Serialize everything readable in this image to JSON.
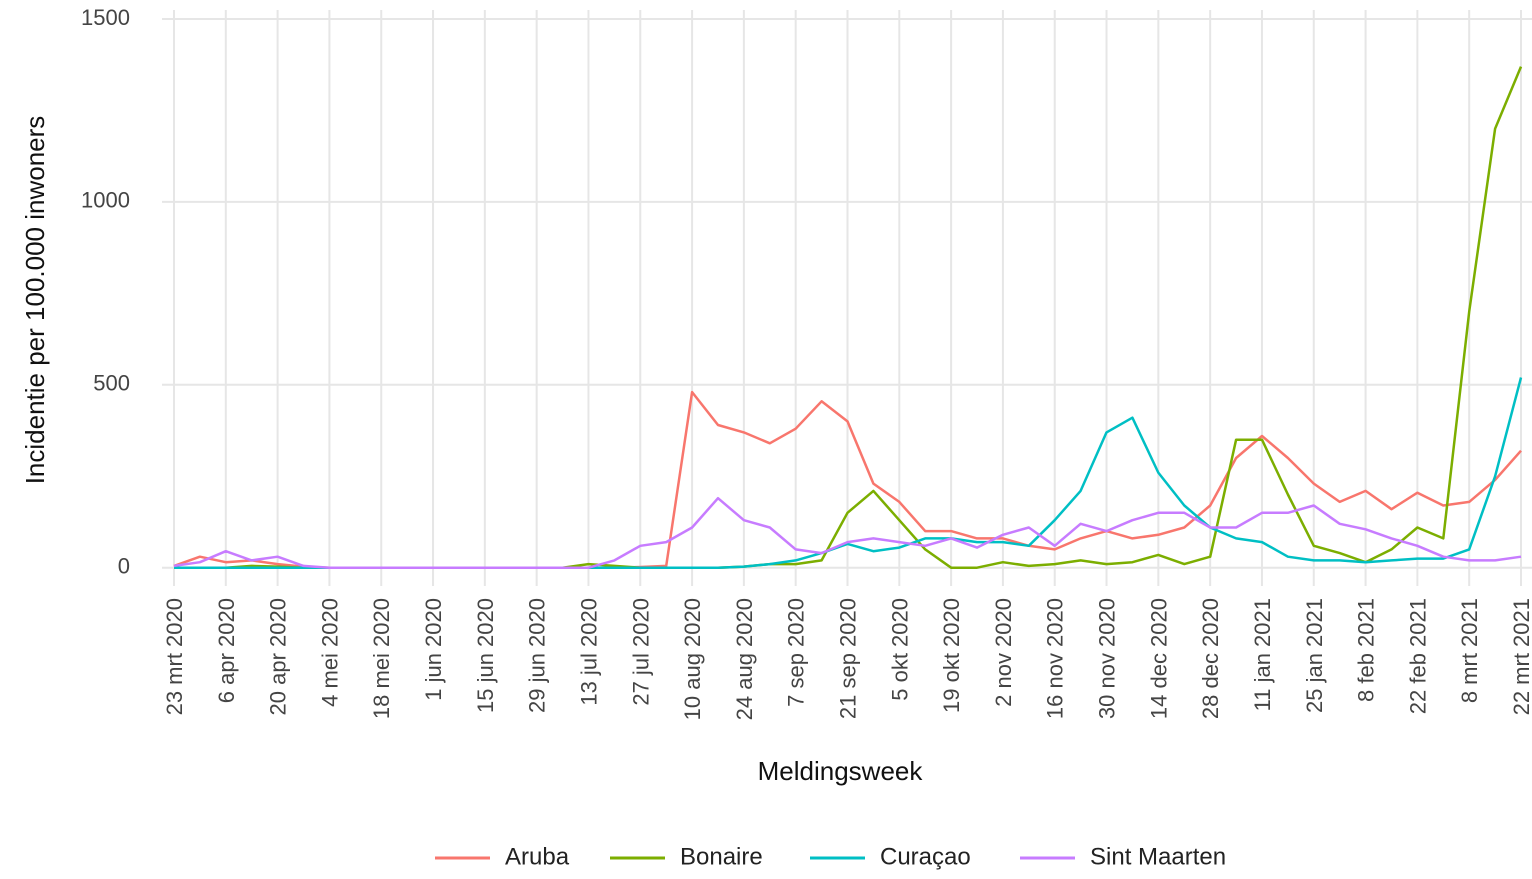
{
  "chart_data": {
    "type": "line",
    "x_label": "Meldingsweek",
    "y_label": "Incidentie per 100.000 inwoners",
    "categories": [
      "23 mrt 2020",
      null,
      "6 apr 2020",
      null,
      "20 apr 2020",
      null,
      "4 mei 2020",
      null,
      "18 mei 2020",
      null,
      "1 jun 2020",
      null,
      "15 jun 2020",
      null,
      "29 jun 2020",
      null,
      "13 jul 2020",
      null,
      "27 jul 2020",
      null,
      "10 aug 2020",
      null,
      "24 aug 2020",
      null,
      "7 sep 2020",
      null,
      "21 sep 2020",
      null,
      "5 okt 2020",
      null,
      "19 okt 2020",
      null,
      "2 nov 2020",
      null,
      "16 nov 2020",
      null,
      "30 nov 2020",
      null,
      "14 dec 2020",
      null,
      "28 dec 2020",
      null,
      "11 jan 2021",
      null,
      "25 jan 2021",
      null,
      "8 feb 2021",
      null,
      "22 feb 2021",
      null,
      "8 mrt 2021",
      null,
      "22 mrt 2021"
    ],
    "series": [
      {
        "name": "Aruba",
        "color": "#F8766D",
        "values": [
          5,
          30,
          15,
          20,
          10,
          3,
          0,
          0,
          0,
          0,
          0,
          0,
          0,
          0,
          0,
          0,
          0,
          0,
          2,
          5,
          480,
          390,
          370,
          340,
          380,
          455,
          400,
          230,
          180,
          100,
          100,
          80,
          80,
          60,
          50,
          80,
          100,
          80,
          90,
          110,
          170,
          300,
          360,
          300,
          230,
          180,
          210,
          160,
          205,
          170,
          180,
          240,
          320
        ]
      },
      {
        "name": "Bonaire",
        "color": "#7CAE00",
        "values": [
          0,
          0,
          0,
          5,
          3,
          0,
          0,
          0,
          0,
          0,
          0,
          0,
          0,
          0,
          0,
          0,
          10,
          5,
          0,
          0,
          0,
          0,
          3,
          10,
          10,
          20,
          150,
          210,
          130,
          50,
          0,
          0,
          15,
          5,
          10,
          20,
          10,
          15,
          35,
          10,
          30,
          350,
          350,
          200,
          60,
          40,
          15,
          50,
          110,
          80,
          700,
          1200,
          1370
        ]
      },
      {
        "name": "Curaçao",
        "color": "#00BFC4",
        "values": [
          0,
          0,
          0,
          0,
          0,
          0,
          0,
          0,
          0,
          0,
          0,
          0,
          0,
          0,
          0,
          0,
          0,
          0,
          0,
          0,
          0,
          0,
          3,
          10,
          20,
          40,
          65,
          45,
          55,
          80,
          80,
          70,
          70,
          60,
          130,
          210,
          370,
          410,
          260,
          170,
          110,
          80,
          70,
          30,
          20,
          20,
          15,
          20,
          25,
          25,
          50,
          250,
          520
        ]
      },
      {
        "name": "Sint Maarten",
        "color": "#C77CFF",
        "values": [
          5,
          15,
          45,
          20,
          30,
          5,
          0,
          0,
          0,
          0,
          0,
          0,
          0,
          0,
          0,
          0,
          0,
          20,
          60,
          70,
          110,
          190,
          130,
          110,
          50,
          40,
          70,
          80,
          70,
          60,
          80,
          55,
          90,
          110,
          60,
          120,
          100,
          130,
          150,
          150,
          110,
          110,
          150,
          150,
          170,
          120,
          105,
          80,
          60,
          30,
          20,
          20,
          30
        ]
      }
    ],
    "ylim": [
      -50,
      1500
    ],
    "yticks": [
      0,
      500,
      1000,
      1500
    ],
    "grid": true,
    "legend": "bottom"
  }
}
